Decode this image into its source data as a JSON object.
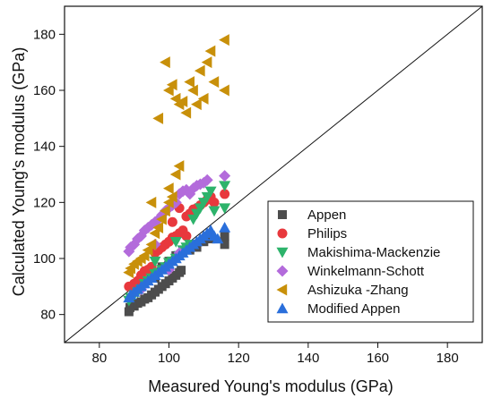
{
  "chart_data": {
    "type": "scatter",
    "xlabel": "Measured Young's modulus (GPa)",
    "ylabel": "Calculated Young's modulus (GPa)",
    "xlim": [
      70,
      190
    ],
    "ylim": [
      70,
      190
    ],
    "xticks": [
      80,
      100,
      120,
      140,
      160,
      180
    ],
    "yticks": [
      80,
      100,
      120,
      140,
      160,
      180
    ],
    "legend_position": "bottom-right",
    "reference_line": "y = x",
    "series": [
      {
        "name": "Appen",
        "marker": "square",
        "color": "#4d4d4d",
        "points": [
          [
            88.5,
            81
          ],
          [
            88.8,
            82.5
          ],
          [
            90,
            83
          ],
          [
            91,
            84
          ],
          [
            92,
            84.5
          ],
          [
            93,
            85.5
          ],
          [
            94,
            86
          ],
          [
            95,
            87
          ],
          [
            96,
            88
          ],
          [
            97,
            89
          ],
          [
            98,
            90
          ],
          [
            99,
            91
          ],
          [
            100,
            92
          ],
          [
            101,
            93
          ],
          [
            102,
            94
          ],
          [
            103,
            95
          ],
          [
            103.5,
            95.8
          ],
          [
            96,
            93
          ],
          [
            98,
            97
          ],
          [
            100,
            99
          ],
          [
            102,
            101
          ],
          [
            104,
            102
          ],
          [
            106,
            103
          ],
          [
            108,
            104
          ],
          [
            110,
            106
          ],
          [
            112,
            107
          ],
          [
            116,
            105
          ],
          [
            116,
            108
          ]
        ]
      },
      {
        "name": "Philips",
        "marker": "circle",
        "color": "#e8383d",
        "points": [
          [
            88.5,
            90
          ],
          [
            90,
            91
          ],
          [
            91,
            92
          ],
          [
            92,
            94
          ],
          [
            93,
            95.5
          ],
          [
            94,
            96
          ],
          [
            95,
            97
          ],
          [
            96,
            102
          ],
          [
            97,
            103
          ],
          [
            98,
            104
          ],
          [
            99,
            105
          ],
          [
            100,
            106
          ],
          [
            101,
            107.5
          ],
          [
            102,
            108
          ],
          [
            103,
            109
          ],
          [
            104,
            110
          ],
          [
            105,
            115
          ],
          [
            106,
            116
          ],
          [
            107,
            117.5
          ],
          [
            108,
            118
          ],
          [
            109,
            119
          ],
          [
            110,
            120
          ],
          [
            111,
            121
          ],
          [
            112,
            122
          ],
          [
            113,
            120
          ],
          [
            116,
            123
          ],
          [
            103,
            118
          ],
          [
            105,
            108
          ],
          [
            101,
            113
          ]
        ]
      },
      {
        "name": "Makishima-Mackenzie",
        "marker": "triangle-down",
        "color": "#2db36b",
        "points": [
          [
            88.5,
            85
          ],
          [
            89,
            86
          ],
          [
            90,
            87
          ],
          [
            91,
            88
          ],
          [
            92,
            89
          ],
          [
            93,
            91
          ],
          [
            94,
            92
          ],
          [
            95,
            93
          ],
          [
            96,
            94.5
          ],
          [
            97,
            95
          ],
          [
            98,
            96
          ],
          [
            99,
            97
          ],
          [
            100,
            98.5
          ],
          [
            101,
            99
          ],
          [
            102,
            100
          ],
          [
            103,
            101
          ],
          [
            104,
            103
          ],
          [
            105,
            104
          ],
          [
            106,
            105
          ],
          [
            107,
            114
          ],
          [
            108,
            116
          ],
          [
            109,
            118
          ],
          [
            110,
            120
          ],
          [
            111,
            122
          ],
          [
            112,
            124
          ],
          [
            113,
            117
          ],
          [
            116,
            118
          ],
          [
            116,
            126
          ],
          [
            102,
            106
          ],
          [
            96,
            99
          ]
        ]
      },
      {
        "name": "Winkelmann-Schott",
        "marker": "diamond",
        "color": "#b36bdb",
        "points": [
          [
            88.5,
            102.5
          ],
          [
            89,
            104
          ],
          [
            90,
            105
          ],
          [
            91,
            107
          ],
          [
            92,
            108
          ],
          [
            93,
            110
          ],
          [
            94,
            111
          ],
          [
            95,
            112
          ],
          [
            96,
            113
          ],
          [
            97,
            114
          ],
          [
            98,
            115.5
          ],
          [
            99,
            117
          ],
          [
            100,
            118
          ],
          [
            101,
            119
          ],
          [
            102,
            120
          ],
          [
            103,
            123
          ],
          [
            104,
            124
          ],
          [
            105,
            124.5
          ],
          [
            106,
            123
          ],
          [
            107,
            125
          ],
          [
            108,
            126
          ],
          [
            109,
            126.5
          ],
          [
            110,
            127
          ],
          [
            111,
            128
          ],
          [
            116,
            129.5
          ],
          [
            92,
            89
          ],
          [
            100,
            96
          ],
          [
            103,
            102
          ],
          [
            96,
            105
          ]
        ]
      },
      {
        "name": "Ashizuka -Zhang",
        "marker": "triangle-left",
        "color": "#c8900a",
        "points": [
          [
            88.5,
            95
          ],
          [
            89,
            96.5
          ],
          [
            90,
            98
          ],
          [
            91,
            99
          ],
          [
            92,
            100
          ],
          [
            93,
            101
          ],
          [
            94,
            103
          ],
          [
            95,
            105
          ],
          [
            96,
            109
          ],
          [
            97,
            111
          ],
          [
            98,
            114
          ],
          [
            99,
            117
          ],
          [
            100,
            120
          ],
          [
            101,
            122
          ],
          [
            102,
            130
          ],
          [
            103,
            133
          ],
          [
            97,
            150
          ],
          [
            99,
            170
          ],
          [
            100,
            160
          ],
          [
            101,
            162
          ],
          [
            102,
            157
          ],
          [
            103,
            155
          ],
          [
            104,
            156
          ],
          [
            105,
            152
          ],
          [
            106,
            163
          ],
          [
            107,
            160
          ],
          [
            108,
            155
          ],
          [
            109,
            167
          ],
          [
            110,
            157
          ],
          [
            111,
            170
          ],
          [
            112,
            174
          ],
          [
            113,
            163
          ],
          [
            116,
            160
          ],
          [
            116,
            178
          ],
          [
            95,
            120
          ],
          [
            100,
            125
          ]
        ]
      },
      {
        "name": "Modified Appen",
        "marker": "triangle-up",
        "color": "#2a6fdb",
        "points": [
          [
            88.5,
            86
          ],
          [
            89,
            87
          ],
          [
            90,
            88
          ],
          [
            91,
            89
          ],
          [
            92,
            90
          ],
          [
            93,
            91
          ],
          [
            94,
            92
          ],
          [
            95,
            93
          ],
          [
            96,
            94
          ],
          [
            97,
            95
          ],
          [
            98,
            96
          ],
          [
            99,
            97
          ],
          [
            100,
            98
          ],
          [
            101,
            99
          ],
          [
            102,
            100
          ],
          [
            103,
            101
          ],
          [
            104,
            102
          ],
          [
            105,
            103
          ],
          [
            106,
            104
          ],
          [
            107,
            105
          ],
          [
            108,
            106
          ],
          [
            109,
            107
          ],
          [
            110,
            108
          ],
          [
            111,
            109
          ],
          [
            112,
            110
          ],
          [
            113,
            108
          ],
          [
            114,
            107
          ],
          [
            116,
            111
          ]
        ]
      }
    ]
  }
}
